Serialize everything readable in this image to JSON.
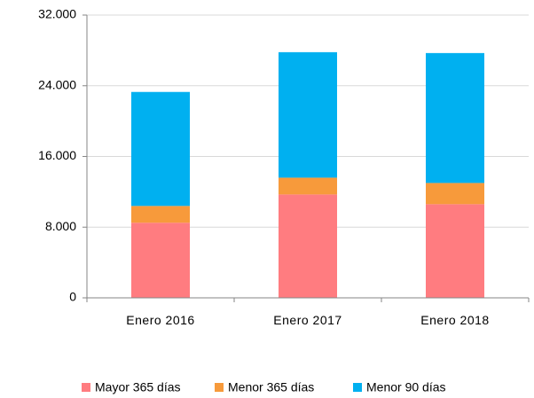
{
  "chart_data": {
    "type": "stacked_bar",
    "categories": [
      "Enero 2016",
      "Enero 2017",
      "Enero 2018"
    ],
    "series": [
      {
        "name": "Mayor 365 días",
        "color": "#ff7c80",
        "values": [
          8500,
          11700,
          10600
        ]
      },
      {
        "name": "Menor 365 días",
        "color": "#f79a3b",
        "values": [
          1900,
          1900,
          2400
        ]
      },
      {
        "name": "Menor 90 días",
        "color": "#00b0f0",
        "values": [
          12900,
          14200,
          14700
        ]
      }
    ],
    "ylim": [
      0,
      32000
    ],
    "yticks": [
      0,
      {
        "value": 8000,
        "label": "8.000"
      },
      {
        "value": 16000,
        "label": "16.000"
      },
      {
        "value": 24000,
        "label": "24.000"
      },
      {
        "value": 32000,
        "label": "32.000"
      }
    ],
    "grid": true,
    "legend": "bottom"
  }
}
